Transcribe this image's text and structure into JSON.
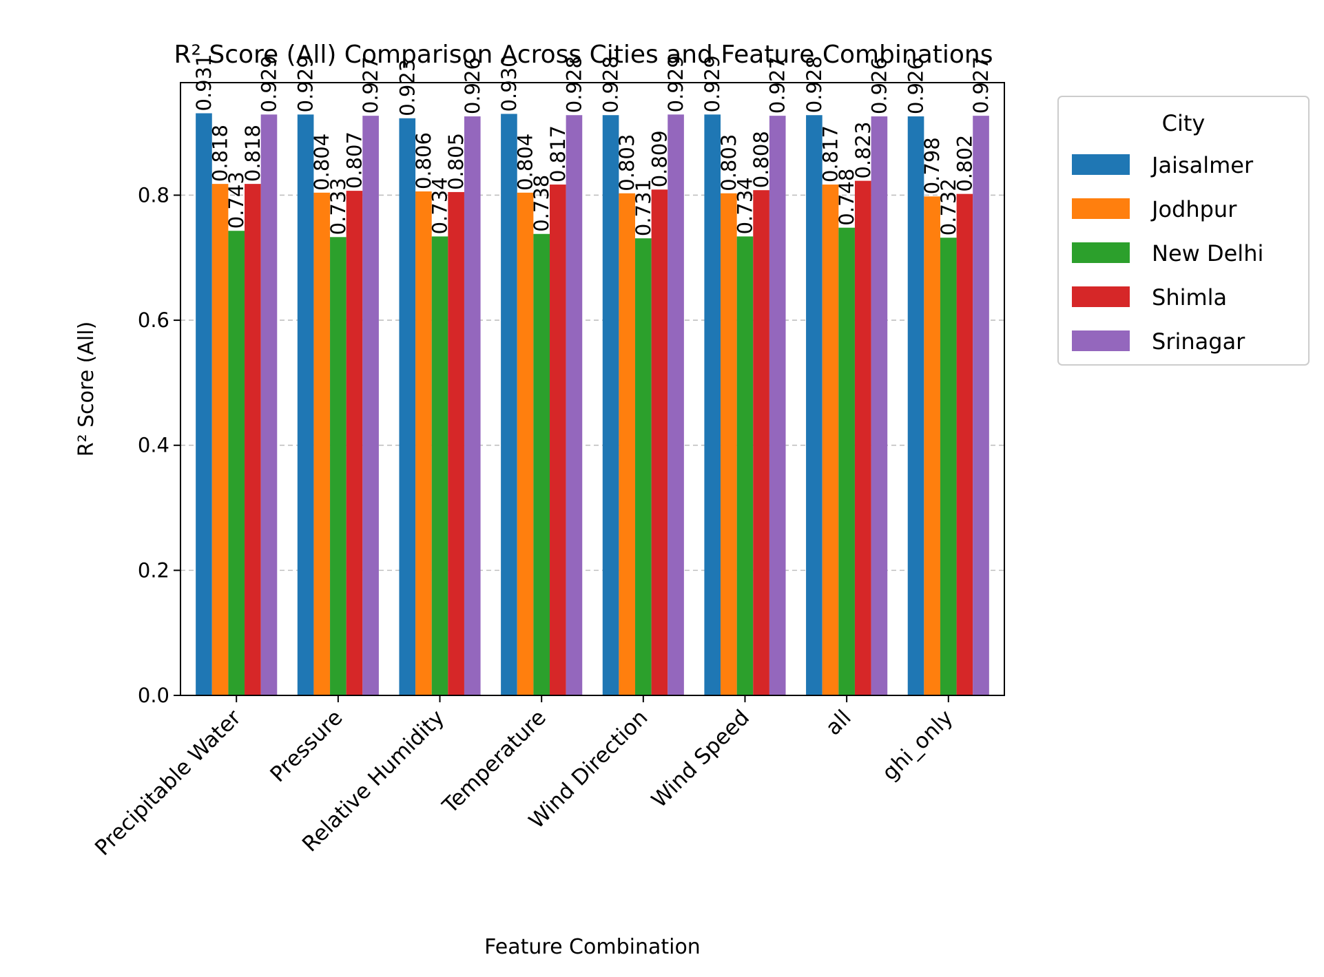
{
  "chart_data": {
    "type": "bar",
    "title": "R² Score (All) Comparison Across Cities and Feature Combinations",
    "xlabel": "Feature Combination",
    "ylabel": "R² Score (All)",
    "ylim": [
      0,
      0.98
    ],
    "yticks": [
      "0.0",
      "0.2",
      "0.4",
      "0.6",
      "0.8"
    ],
    "grid": "y-dashed",
    "legend_title": "City",
    "legend_position": "outside-right",
    "categories": [
      "Precipitable Water",
      "Pressure",
      "Relative Humidity",
      "Temperature",
      "Wind Direction",
      "Wind Speed",
      "all",
      "ghi_only"
    ],
    "series": [
      {
        "name": "Jaisalmer",
        "color": "#1f77b4",
        "values": [
          0.931,
          0.929,
          0.923,
          0.93,
          0.928,
          0.929,
          0.928,
          0.926
        ],
        "labels": [
          "0.931",
          "0.929",
          "0.923",
          "0.930",
          "0.928",
          "0.929",
          "0.928",
          "0.926"
        ]
      },
      {
        "name": "Jodhpur",
        "color": "#ff7f0e",
        "values": [
          0.818,
          0.804,
          0.806,
          0.804,
          0.803,
          0.803,
          0.817,
          0.798
        ],
        "labels": [
          "0.818",
          "0.804",
          "0.806",
          "0.804",
          "0.803",
          "0.803",
          "0.817",
          "0.798"
        ]
      },
      {
        "name": "New Delhi",
        "color": "#2ca02c",
        "values": [
          0.743,
          0.733,
          0.734,
          0.738,
          0.731,
          0.734,
          0.748,
          0.732
        ],
        "labels": [
          "0.743",
          "0.733",
          "0.734",
          "0.738",
          "0.731",
          "0.734",
          "0.748",
          "0.732"
        ]
      },
      {
        "name": "Shimla",
        "color": "#d62728",
        "values": [
          0.818,
          0.807,
          0.805,
          0.817,
          0.809,
          0.808,
          0.823,
          0.802
        ],
        "labels": [
          "0.818",
          "0.807",
          "0.805",
          "0.817",
          "0.809",
          "0.808",
          "0.823",
          "0.802"
        ]
      },
      {
        "name": "Srinagar",
        "color": "#9467bd",
        "values": [
          0.929,
          0.927,
          0.926,
          0.928,
          0.929,
          0.927,
          0.926,
          0.927
        ],
        "labels": [
          "0.929",
          "0.927",
          "0.926",
          "0.928",
          "0.929",
          "0.927",
          "0.926",
          "0.927"
        ]
      }
    ]
  }
}
